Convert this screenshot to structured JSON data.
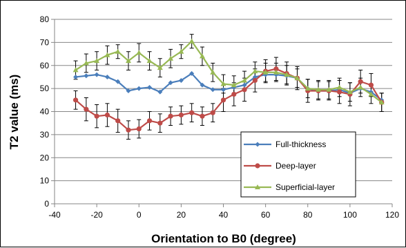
{
  "chart_data": {
    "type": "line",
    "title": "",
    "xlabel": "Orientation to B0 (degree)",
    "ylabel": "T2 value (ms)",
    "xlim": [
      -40,
      120
    ],
    "ylim": [
      0,
      80
    ],
    "xticks": [
      -40,
      -20,
      0,
      20,
      40,
      60,
      80,
      100,
      120
    ],
    "yticks": [
      0,
      10,
      20,
      30,
      40,
      50,
      60,
      70,
      80
    ],
    "grid": "horizontal",
    "legend_position": "lower-right",
    "x": [
      -30,
      -25,
      -20,
      -15,
      -10,
      -5,
      0,
      5,
      10,
      15,
      20,
      25,
      30,
      35,
      40,
      45,
      50,
      55,
      60,
      65,
      70,
      75,
      80,
      85,
      90,
      95,
      100,
      105,
      110,
      115
    ],
    "series": [
      {
        "name": "Full-thickness",
        "color": "#4a7ebb",
        "marker": "diamond",
        "values": [
          55,
          55.5,
          56,
          55,
          53,
          49,
          50,
          50.5,
          48.5,
          52.5,
          53.5,
          56.5,
          51.5,
          49.5,
          49.5,
          50.5,
          51.5,
          55,
          56,
          56,
          55.5,
          54.5,
          50,
          49,
          49,
          49.5,
          48,
          50,
          48.5,
          45
        ],
        "errors": []
      },
      {
        "name": "Deep-layer",
        "color": "#be4b48",
        "marker": "circle",
        "values": [
          45,
          41,
          38,
          38.5,
          36,
          32,
          32.5,
          36,
          35,
          38,
          38.5,
          39.5,
          38,
          39.5,
          45,
          47.5,
          49.5,
          53.5,
          57.5,
          58.5,
          56.5,
          54.5,
          49,
          49,
          49,
          48.5,
          47.5,
          53,
          51.5,
          44
        ],
        "errors": [
          4,
          5,
          5,
          5,
          5,
          4,
          4,
          4,
          4,
          4,
          4,
          4,
          4,
          4,
          5,
          5,
          5,
          5,
          5,
          5,
          5,
          5,
          5,
          4,
          4,
          5,
          5,
          5,
          5,
          4
        ]
      },
      {
        "name": "Superficial-layer",
        "color": "#98b954",
        "marker": "triangle",
        "values": [
          58,
          61,
          62,
          64.5,
          66,
          62,
          65.5,
          62,
          59,
          63,
          66,
          70.5,
          64,
          57,
          52,
          51.5,
          53.5,
          57.5,
          57,
          57,
          56,
          54.5,
          50,
          49.5,
          49.5,
          50.5,
          48.5,
          50.5,
          47.5,
          44
        ],
        "errors": [
          4,
          4,
          4,
          4,
          3,
          4,
          4,
          4,
          4,
          4,
          3,
          3,
          4,
          4,
          4,
          4,
          4,
          4,
          4,
          4,
          4,
          4,
          4,
          4,
          4,
          4,
          4,
          4,
          4,
          4
        ]
      }
    ]
  },
  "colors": {
    "background": "#ffffff",
    "gridline": "#868686",
    "axis": "#868686",
    "errorbar": "#000000"
  }
}
